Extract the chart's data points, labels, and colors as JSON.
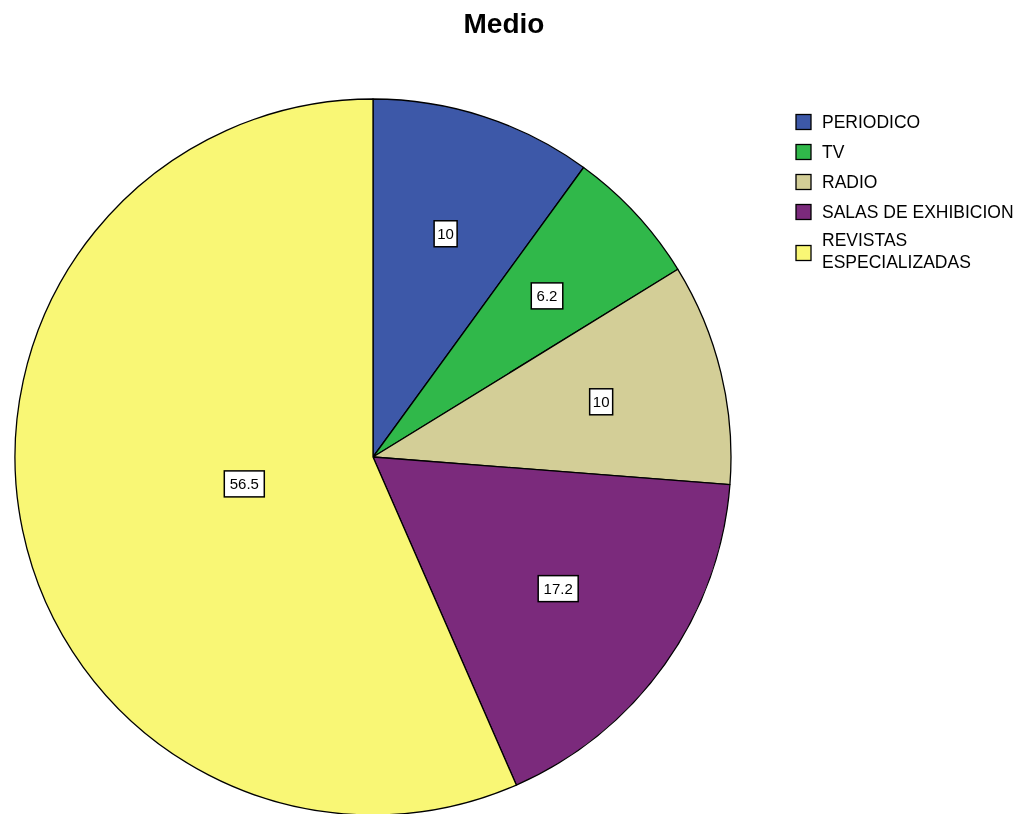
{
  "chart_data": {
    "type": "pie",
    "title": "Medio",
    "categories": [
      "PERIODICO",
      "TV",
      "RADIO",
      "SALAS DE EXHIBICION",
      "REVISTAS ESPECIALIZADAS"
    ],
    "values": [
      10,
      6.2,
      10,
      17.2,
      56.5
    ],
    "colors": [
      "#3d58a8",
      "#30b84a",
      "#d3ce97",
      "#7b2a7c",
      "#f9f775"
    ],
    "data_labels": true,
    "legend": "top right"
  }
}
